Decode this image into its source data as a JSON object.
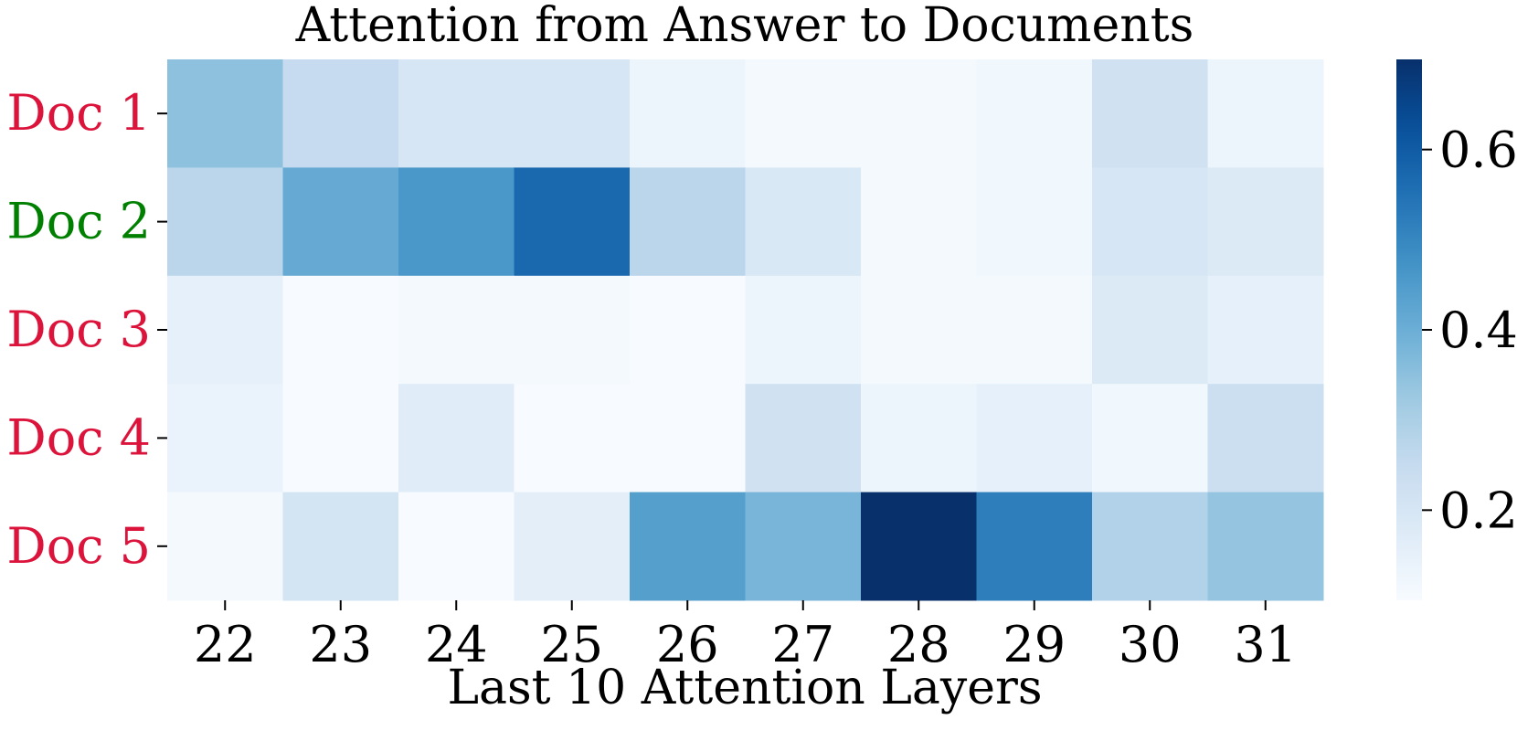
{
  "chart_data": {
    "type": "heatmap",
    "title": "Attention from Answer to Documents",
    "xlabel": "Last 10 Attention Layers",
    "ylabel": "",
    "x_categories": [
      "22",
      "23",
      "24",
      "25",
      "26",
      "27",
      "28",
      "29",
      "30",
      "31"
    ],
    "y_categories": [
      "Doc 1",
      "Doc 2",
      "Doc 3",
      "Doc 4",
      "Doc 5"
    ],
    "y_label_colors": [
      "#dc143c",
      "#008000",
      "#dc143c",
      "#dc143c",
      "#dc143c"
    ],
    "values": [
      [
        0.35,
        0.25,
        0.2,
        0.2,
        0.13,
        0.11,
        0.11,
        0.12,
        0.22,
        0.13
      ],
      [
        0.27,
        0.41,
        0.46,
        0.57,
        0.27,
        0.19,
        0.11,
        0.12,
        0.2,
        0.18
      ],
      [
        0.15,
        0.1,
        0.11,
        0.11,
        0.1,
        0.13,
        0.11,
        0.11,
        0.18,
        0.15
      ],
      [
        0.14,
        0.1,
        0.17,
        0.1,
        0.1,
        0.22,
        0.13,
        0.15,
        0.12,
        0.23
      ],
      [
        0.11,
        0.21,
        0.1,
        0.16,
        0.44,
        0.38,
        0.7,
        0.52,
        0.29,
        0.34
      ]
    ],
    "colorbar": {
      "colormap": "Blues",
      "range": [
        0.1,
        0.7
      ],
      "ticks": [
        0.2,
        0.4,
        0.6
      ],
      "tick_labels": [
        "0.2",
        "0.4",
        "0.6"
      ]
    }
  }
}
